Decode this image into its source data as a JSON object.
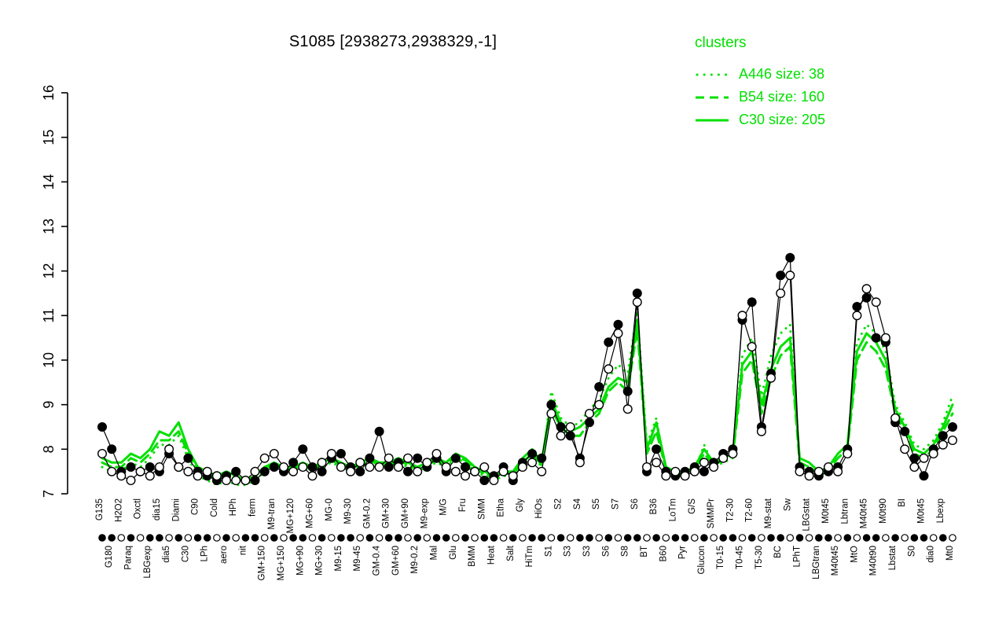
{
  "title": "S1085 [2938273,2938329,-1]",
  "legend": {
    "title": "clusters",
    "entries": [
      {
        "label": "A446 size: 38",
        "style": "dotted"
      },
      {
        "label": "B54 size: 160",
        "style": "dashed"
      },
      {
        "label": "C30 size: 205",
        "style": "solid"
      }
    ]
  },
  "colors": {
    "cluster_green": "#00e000",
    "point_black": "#000000",
    "open_fill": "#ffffff",
    "background": "#ffffff"
  },
  "chart_data": {
    "type": "line",
    "title": "S1085 [2938273,2938329,-1]",
    "xlabel": "",
    "ylabel": "",
    "ylim": [
      7,
      16
    ],
    "yticks": [
      7,
      8,
      9,
      10,
      11,
      12,
      13,
      14,
      15,
      16
    ],
    "grid": false,
    "legend_position": "top-right",
    "categories": [
      "G135",
      "G180",
      "H2O2",
      "Paraq",
      "Oxctl",
      "LBGexp",
      "dia15",
      "dia5",
      "Diami",
      "C30",
      "C90",
      "LPh",
      "Cold",
      "aero",
      "HPh",
      "nit",
      "ferm",
      "GM+150",
      "M9-tran",
      "MG+150",
      "MG+120",
      "MG+90",
      "MG+60",
      "MG+30",
      "MG-0",
      "M9-15",
      "M9-30",
      "M9-45",
      "GM-0.2",
      "GM-0.4",
      "GM+30",
      "GM+60",
      "GM+90",
      "M9-0.2",
      "M9-exp",
      "Mal",
      "M/G",
      "Glu",
      "Fru",
      "BMM",
      "SMM",
      "Heat",
      "Etha",
      "Salt",
      "Gly",
      "HiTm",
      "HiOs",
      "S1",
      "S2",
      "S3",
      "S4",
      "S3",
      "S5",
      "S6",
      "S7",
      "S8",
      "S6",
      "BT",
      "B36",
      "B60",
      "LoTm",
      "Pyr",
      "G/S",
      "Glucon",
      "SMMPr",
      "T0-15",
      "T2-30",
      "T0-45",
      "T2-60",
      "T5-30",
      "M9-stat",
      "BC",
      "Sw",
      "LPhT",
      "LBGstat",
      "LBGtran",
      "M0t45",
      "M40t45",
      "Lbtran",
      "MtO",
      "M40t45",
      "M40t90",
      "M0t90",
      "Lbstat",
      "BI",
      "S0",
      "M0t45",
      "dia0",
      "Lbexp",
      "Mt0"
    ],
    "series": [
      {
        "name": "profile-filled",
        "marker": "filled",
        "line_color": "#000000",
        "values": [
          8.5,
          8.0,
          7.5,
          7.6,
          7.5,
          7.6,
          7.5,
          7.9,
          7.6,
          7.8,
          7.5,
          7.4,
          7.3,
          7.4,
          7.5,
          7.3,
          7.3,
          7.5,
          7.6,
          7.5,
          7.7,
          8.0,
          7.6,
          7.5,
          7.8,
          7.9,
          7.6,
          7.5,
          7.8,
          8.4,
          7.6,
          7.7,
          7.5,
          7.8,
          7.6,
          7.8,
          7.5,
          7.8,
          7.6,
          7.5,
          7.3,
          7.4,
          7.6,
          7.3,
          7.7,
          7.9,
          7.8,
          9.0,
          8.5,
          8.3,
          7.8,
          8.6,
          9.4,
          10.4,
          10.8,
          9.3,
          11.5,
          7.5,
          8.0,
          7.5,
          7.4,
          7.5,
          7.6,
          7.5,
          7.7,
          7.9,
          8.0,
          10.9,
          11.3,
          8.5,
          9.7,
          11.9,
          12.3,
          7.6,
          7.5,
          7.4,
          7.5,
          7.6,
          8.0,
          11.2,
          11.4,
          10.5,
          10.4,
          8.6,
          8.4,
          7.8,
          7.4,
          8.0,
          8.3,
          8.5
        ]
      },
      {
        "name": "profile-open",
        "marker": "open",
        "line_color": "#000000",
        "values": [
          7.9,
          7.5,
          7.4,
          7.3,
          7.5,
          7.4,
          7.6,
          8.0,
          7.6,
          7.5,
          7.4,
          7.5,
          7.4,
          7.3,
          7.3,
          7.3,
          7.5,
          7.8,
          7.9,
          7.6,
          7.5,
          7.6,
          7.4,
          7.7,
          7.9,
          7.6,
          7.5,
          7.7,
          7.6,
          7.6,
          7.8,
          7.6,
          7.8,
          7.5,
          7.7,
          7.9,
          7.6,
          7.5,
          7.4,
          7.5,
          7.6,
          7.3,
          7.5,
          7.4,
          7.6,
          7.7,
          7.5,
          8.8,
          8.3,
          8.5,
          7.7,
          8.8,
          9.0,
          9.8,
          10.6,
          8.9,
          11.3,
          7.6,
          7.7,
          7.4,
          7.5,
          7.4,
          7.5,
          7.7,
          7.6,
          7.8,
          7.9,
          11.0,
          10.3,
          8.4,
          9.6,
          11.5,
          11.9,
          7.5,
          7.4,
          7.5,
          7.6,
          7.5,
          7.9,
          11.0,
          11.6,
          11.3,
          10.5,
          8.7,
          8.0,
          7.6,
          7.8,
          7.9,
          8.1,
          8.2
        ]
      },
      {
        "name": "C30",
        "cluster_size": 205,
        "style": "solid",
        "line_color": "#00e000",
        "values": [
          7.8,
          7.7,
          7.7,
          7.9,
          7.8,
          8.0,
          8.4,
          8.3,
          8.6,
          8.0,
          7.6,
          7.5,
          7.4,
          7.5,
          7.4,
          7.3,
          7.4,
          7.6,
          7.7,
          7.6,
          7.6,
          7.7,
          7.6,
          7.7,
          7.8,
          7.7,
          7.6,
          7.7,
          7.8,
          7.7,
          7.7,
          7.8,
          7.7,
          7.6,
          7.7,
          7.8,
          7.7,
          7.9,
          7.8,
          7.6,
          7.5,
          7.4,
          7.5,
          7.5,
          7.8,
          8.0,
          7.7,
          9.1,
          8.6,
          8.4,
          8.5,
          8.7,
          8.9,
          9.4,
          9.6,
          9.5,
          10.9,
          8.0,
          8.6,
          7.6,
          7.5,
          7.5,
          7.6,
          8.0,
          7.7,
          7.8,
          7.9,
          9.9,
          10.2,
          9.0,
          9.8,
          10.3,
          10.5,
          7.8,
          7.7,
          7.5,
          7.6,
          7.9,
          8.1,
          10.2,
          10.6,
          10.4,
          10.0,
          8.9,
          8.5,
          8.0,
          7.9,
          8.1,
          8.5,
          9.0
        ]
      },
      {
        "name": "B54",
        "cluster_size": 160,
        "style": "dashed",
        "line_color": "#00e000",
        "values": [
          7.7,
          7.6,
          7.6,
          7.8,
          7.7,
          7.9,
          8.2,
          8.2,
          8.4,
          7.9,
          7.5,
          7.4,
          7.35,
          7.45,
          7.35,
          7.3,
          7.4,
          7.55,
          7.65,
          7.55,
          7.55,
          7.65,
          7.55,
          7.65,
          7.75,
          7.65,
          7.55,
          7.65,
          7.75,
          7.65,
          7.65,
          7.75,
          7.65,
          7.55,
          7.65,
          7.75,
          7.65,
          7.85,
          7.75,
          7.55,
          7.45,
          7.35,
          7.45,
          7.45,
          7.7,
          7.9,
          7.65,
          8.9,
          8.5,
          8.3,
          8.3,
          8.6,
          8.8,
          9.3,
          9.5,
          9.3,
          10.7,
          7.9,
          8.4,
          7.55,
          7.45,
          7.45,
          7.55,
          7.9,
          7.65,
          7.75,
          7.85,
          9.7,
          10.0,
          8.8,
          9.6,
          10.1,
          10.3,
          7.7,
          7.6,
          7.45,
          7.55,
          7.8,
          8.0,
          10.0,
          10.4,
          10.2,
          9.8,
          8.8,
          8.4,
          7.9,
          7.8,
          8.0,
          8.4,
          8.8
        ]
      },
      {
        "name": "A446",
        "cluster_size": 38,
        "style": "dotted",
        "line_color": "#00e000",
        "values": [
          7.6,
          7.5,
          7.5,
          7.7,
          7.6,
          7.8,
          8.1,
          8.1,
          8.3,
          7.8,
          7.4,
          7.3,
          7.2,
          7.3,
          7.2,
          7.2,
          7.3,
          7.5,
          7.6,
          7.5,
          7.5,
          7.6,
          7.5,
          7.6,
          7.7,
          7.6,
          7.5,
          7.6,
          7.7,
          7.6,
          7.6,
          7.7,
          7.6,
          7.5,
          7.6,
          7.7,
          7.6,
          7.8,
          7.7,
          7.5,
          7.4,
          7.3,
          7.4,
          7.4,
          7.7,
          7.9,
          7.6,
          9.3,
          8.7,
          8.5,
          8.6,
          8.9,
          9.1,
          9.6,
          9.9,
          9.7,
          11.1,
          8.1,
          8.7,
          7.5,
          7.4,
          7.4,
          7.5,
          8.1,
          7.6,
          7.7,
          7.8,
          10.1,
          10.5,
          9.2,
          10.1,
          10.6,
          10.8,
          7.7,
          7.6,
          7.4,
          7.5,
          7.8,
          8.0,
          10.4,
          10.8,
          10.6,
          10.2,
          9.0,
          8.6,
          8.1,
          8.0,
          8.2,
          8.6,
          9.2
        ]
      }
    ],
    "axis_marker_strip": "alternating filled and open point glyphs along the category axis"
  }
}
